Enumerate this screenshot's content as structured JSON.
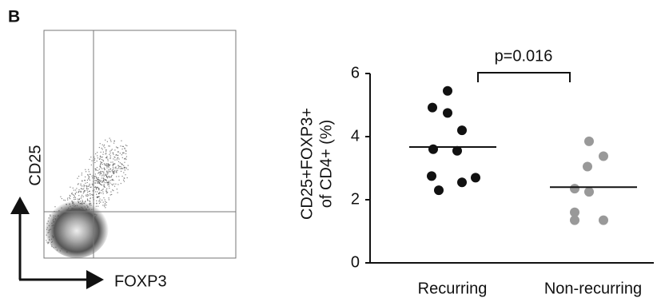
{
  "panel_label": "B",
  "chart_data": [
    {
      "type": "flow",
      "x_label": "FOXP3",
      "y_label": "CD25"
    },
    {
      "type": "dot",
      "y_label_lines": [
        "CD25+FOXP3+",
        "of CD4+ (%)"
      ],
      "categories": [
        "Recurring",
        "Non-recurring"
      ],
      "groups": [
        {
          "color": "#111111",
          "values": [
            5.45,
            4.92,
            4.75,
            4.2,
            3.6,
            3.55,
            2.75,
            2.7,
            2.55,
            2.3
          ],
          "mean": 3.67
        },
        {
          "color": "#999999",
          "values": [
            3.85,
            3.38,
            3.05,
            2.35,
            2.25,
            1.6,
            1.35,
            1.35
          ],
          "mean": 2.4
        }
      ],
      "annotation": "p=0.016",
      "ylim": [
        0,
        6
      ],
      "yticks": [
        0,
        2,
        4,
        6
      ]
    }
  ]
}
